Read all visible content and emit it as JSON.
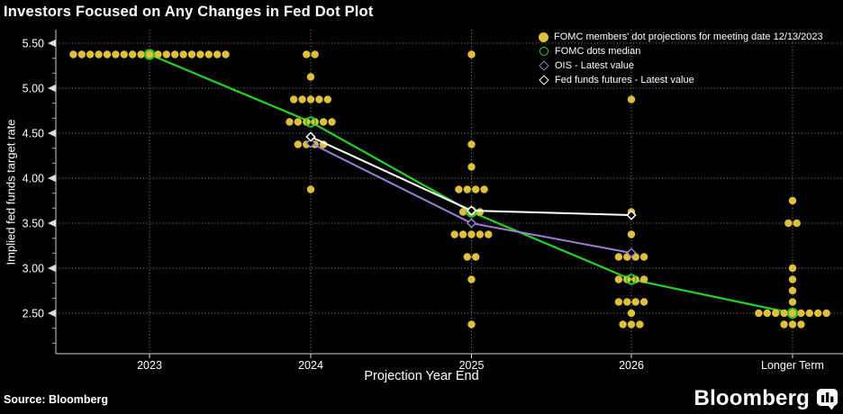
{
  "title": "Investors Focused on Any Changes in Fed Dot Plot",
  "source": "Source: Bloomberg",
  "brand": {
    "wordmark": "Bloomberg"
  },
  "colors": {
    "background": "#000000",
    "dots": "#DFC03A",
    "median": "#25D125",
    "ois": "#9B80D2",
    "futures": "#FFFFFF",
    "grid": "rgba(255,255,255,0.55)",
    "axis": "#CCCCCC"
  },
  "legend": [
    {
      "marker": "filled-circle",
      "color": "#DFC03A",
      "label": "FOMC members' dot projections for meeting date 12/13/2023"
    },
    {
      "marker": "open-circle",
      "color": "#25D125",
      "label": "FOMC dots median"
    },
    {
      "marker": "open-diamond",
      "color": "#9B80D2",
      "label": "OIS - Latest value"
    },
    {
      "marker": "open-diamond",
      "color": "#FFFFFF",
      "label": "Fed funds futures - Latest value"
    }
  ],
  "chart_data": {
    "type": "scatter",
    "title": "Investors Focused on Any Changes in Fed Dot Plot",
    "xlabel": "Projection Year End",
    "ylabel": "Implied fed funds target rate",
    "categories": [
      "2023",
      "2024",
      "2025",
      "2026",
      "Longer Term"
    ],
    "yticks": [
      5.5,
      5.0,
      4.5,
      4.0,
      3.5,
      3.0,
      2.5
    ],
    "ylim": [
      2.05,
      5.65
    ],
    "grid": true,
    "legend_position": "top-right",
    "dot_projections": {
      "2023": [
        {
          "rate": 5.375,
          "count": 19
        }
      ],
      "2024": [
        {
          "rate": 5.375,
          "count": 2
        },
        {
          "rate": 5.125,
          "count": 1
        },
        {
          "rate": 4.875,
          "count": 5
        },
        {
          "rate": 4.625,
          "count": 6
        },
        {
          "rate": 4.375,
          "count": 4
        },
        {
          "rate": 3.875,
          "count": 1
        }
      ],
      "2025": [
        {
          "rate": 5.375,
          "count": 1
        },
        {
          "rate": 4.375,
          "count": 1
        },
        {
          "rate": 4.125,
          "count": 1
        },
        {
          "rate": 3.875,
          "count": 4
        },
        {
          "rate": 3.625,
          "count": 3
        },
        {
          "rate": 3.375,
          "count": 5
        },
        {
          "rate": 3.125,
          "count": 2
        },
        {
          "rate": 2.875,
          "count": 1
        },
        {
          "rate": 2.375,
          "count": 1
        }
      ],
      "2026": [
        {
          "rate": 4.875,
          "count": 1
        },
        {
          "rate": 3.625,
          "count": 1
        },
        {
          "rate": 3.375,
          "count": 1
        },
        {
          "rate": 3.125,
          "count": 4
        },
        {
          "rate": 2.875,
          "count": 4
        },
        {
          "rate": 2.625,
          "count": 4
        },
        {
          "rate": 2.5,
          "count": 1
        },
        {
          "rate": 2.375,
          "count": 3
        }
      ],
      "Longer Term": [
        {
          "rate": 3.75,
          "count": 1
        },
        {
          "rate": 3.5,
          "count": 2
        },
        {
          "rate": 3.0,
          "count": 1
        },
        {
          "rate": 2.875,
          "count": 1
        },
        {
          "rate": 2.75,
          "count": 1
        },
        {
          "rate": 2.625,
          "count": 1
        },
        {
          "rate": 2.5,
          "count": 9
        },
        {
          "rate": 2.375,
          "count": 3
        }
      ]
    },
    "series": [
      {
        "name": "FOMC dots median",
        "type": "line+open-circle",
        "color": "#25D125",
        "x": [
          "2023",
          "2024",
          "2025",
          "2026",
          "Longer Term"
        ],
        "values": [
          5.375,
          4.625,
          3.625,
          2.875,
          2.5
        ]
      },
      {
        "name": "OIS - Latest value",
        "type": "line+open-diamond",
        "color": "#9B80D2",
        "x": [
          "2024",
          "2025",
          "2026"
        ],
        "values": [
          4.39,
          3.5,
          3.17
        ]
      },
      {
        "name": "Fed funds futures - Latest value",
        "type": "line+open-diamond",
        "color": "#FFFFFF",
        "x": [
          "2024",
          "2025",
          "2026"
        ],
        "values": [
          4.46,
          3.64,
          3.59
        ]
      }
    ]
  }
}
